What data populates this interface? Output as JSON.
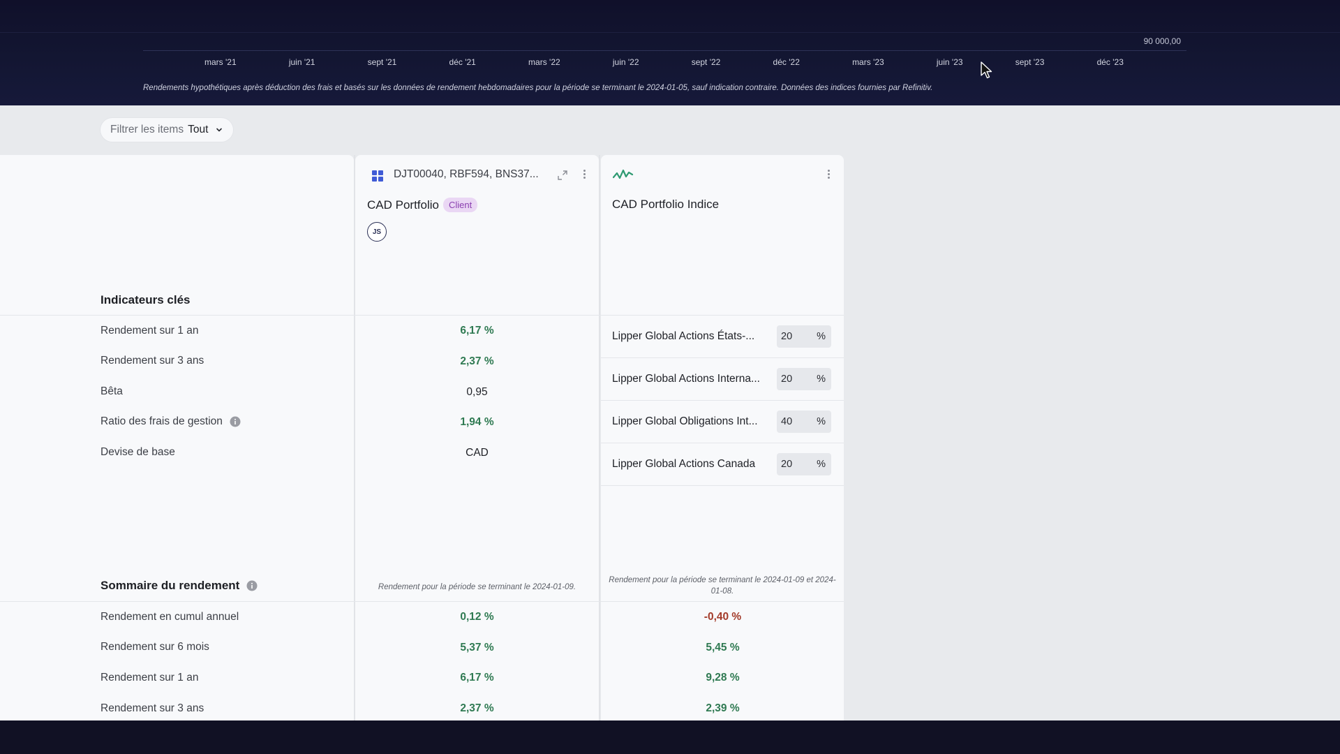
{
  "chart": {
    "y_tick": "90 000,00",
    "x_ticks": [
      "mars '21",
      "juin '21",
      "sept '21",
      "déc '21",
      "mars '22",
      "juin '22",
      "sept '22",
      "déc '22",
      "mars '23",
      "juin '23",
      "sept '23",
      "déc '23"
    ],
    "note": "Rendements hypothétiques après déduction des frais et basés sur les données de rendement hebdomadaires pour la période se terminant le 2024-01-05, sauf indication contraire. Données des indices fournies par Refinitiv."
  },
  "filter": {
    "label": "Filtrer les items",
    "value": "Tout"
  },
  "portfolio": {
    "ids": "DJT00040, RBF594, BNS37...",
    "name": "CAD Portfolio",
    "badge": "Client",
    "avatar": "JS",
    "period_note": "Rendement pour la période se terminant le 2024-01-09."
  },
  "index": {
    "name": "CAD Portfolio Indice",
    "period_note": "Rendement pour la période se terminant le 2024-01-09 et 2024-01-08.",
    "allocations": [
      {
        "label": "Lipper Global Actions États-...",
        "value": "20",
        "unit": "%"
      },
      {
        "label": "Lipper Global Actions Interna...",
        "value": "20",
        "unit": "%"
      },
      {
        "label": "Lipper Global Obligations Int...",
        "value": "40",
        "unit": "%"
      },
      {
        "label": "Lipper Global Actions Canada",
        "value": "20",
        "unit": "%"
      }
    ]
  },
  "key_indicators": {
    "title": "Indicateurs clés",
    "rows": [
      {
        "label": "Rendement sur 1 an",
        "portfolio": "6,17 %"
      },
      {
        "label": "Rendement sur 3 ans",
        "portfolio": "2,37 %"
      },
      {
        "label": "Bêta",
        "portfolio": "0,95"
      },
      {
        "label": "Ratio des frais de gestion",
        "portfolio": "1,94 %"
      },
      {
        "label": "Devise de base",
        "portfolio": "CAD"
      }
    ]
  },
  "performance_summary": {
    "title": "Sommaire du rendement",
    "rows": [
      {
        "label": "Rendement en cumul annuel",
        "portfolio": "0,12 %",
        "index": "-0,40 %"
      },
      {
        "label": "Rendement sur 6 mois",
        "portfolio": "5,37 %",
        "index": "5,45 %"
      },
      {
        "label": "Rendement sur 1 an",
        "portfolio": "6,17 %",
        "index": "9,28 %"
      },
      {
        "label": "Rendement sur 3 ans",
        "portfolio": "2,37 %",
        "index": "2,39 %"
      }
    ]
  },
  "colors": {
    "positive": "#2f7a52",
    "negative": "#a33b2a",
    "background": "#0f0f23"
  }
}
